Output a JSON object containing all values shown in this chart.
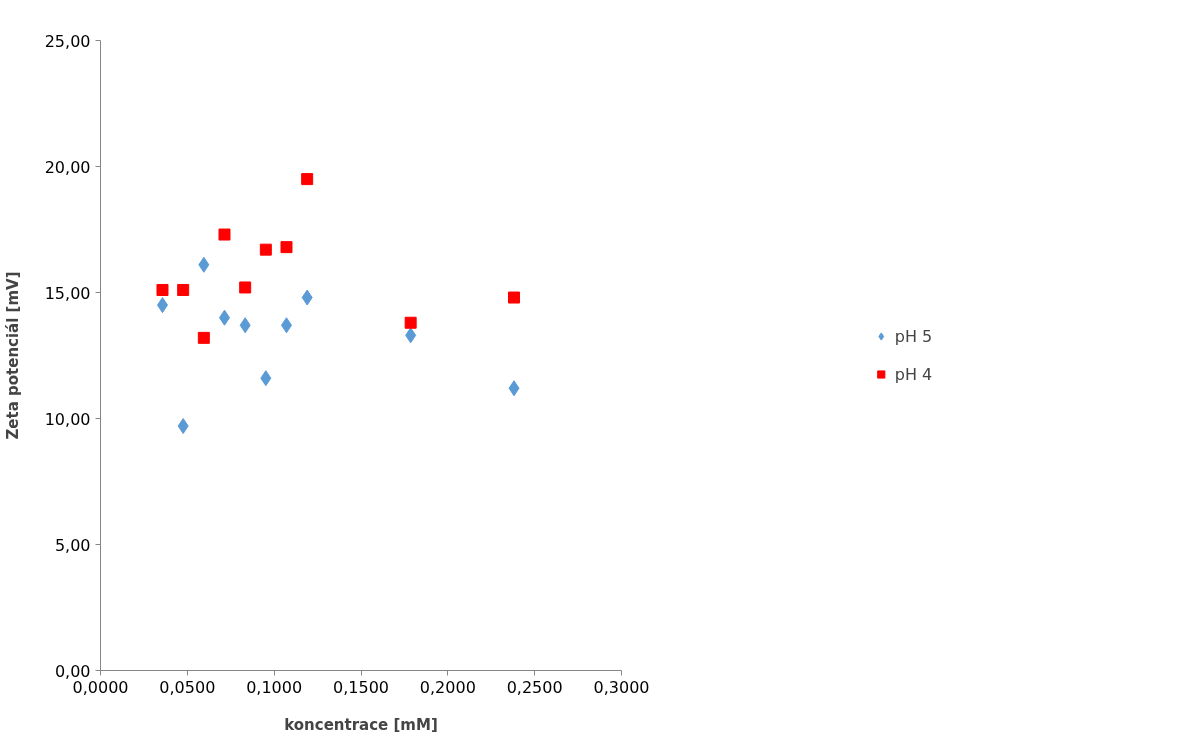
{
  "chart_data": {
    "type": "scatter",
    "xlabel": "koncentrace [mM]",
    "ylabel": "Zeta potenciál [mV]",
    "xlim": [
      0,
      0.3
    ],
    "ylim": [
      0,
      25
    ],
    "xticks": [
      {
        "value": 0,
        "label": "0,0000"
      },
      {
        "value": 0.05,
        "label": "0,0500"
      },
      {
        "value": 0.1,
        "label": "0,1000"
      },
      {
        "value": 0.15,
        "label": "0,1500"
      },
      {
        "value": 0.2,
        "label": "0,2000"
      },
      {
        "value": 0.25,
        "label": "0,2500"
      },
      {
        "value": 0.3,
        "label": "0,3000"
      }
    ],
    "yticks": [
      {
        "value": 0,
        "label": "0,00"
      },
      {
        "value": 5,
        "label": "5,00"
      },
      {
        "value": 10,
        "label": "10,00"
      },
      {
        "value": 15,
        "label": "15,00"
      },
      {
        "value": 20,
        "label": "20,00"
      },
      {
        "value": 25,
        "label": "25,00"
      }
    ],
    "grid": false,
    "legend": "right",
    "x": [
      0.0357,
      0.0476,
      0.0595,
      0.0714,
      0.0833,
      0.0952,
      0.1071,
      0.119,
      0.1786,
      0.2381
    ],
    "series": [
      {
        "name": "pH 5",
        "color": "#5b9bd5",
        "marker": "diamond",
        "values": [
          14.5,
          9.7,
          16.1,
          14.0,
          13.7,
          11.6,
          13.7,
          14.8,
          13.3,
          11.2
        ]
      },
      {
        "name": "pH 4",
        "color": "#ff0000",
        "marker": "square",
        "values": [
          15.1,
          15.1,
          13.2,
          17.3,
          15.2,
          16.7,
          16.8,
          19.5,
          13.8,
          14.8
        ]
      }
    ]
  }
}
